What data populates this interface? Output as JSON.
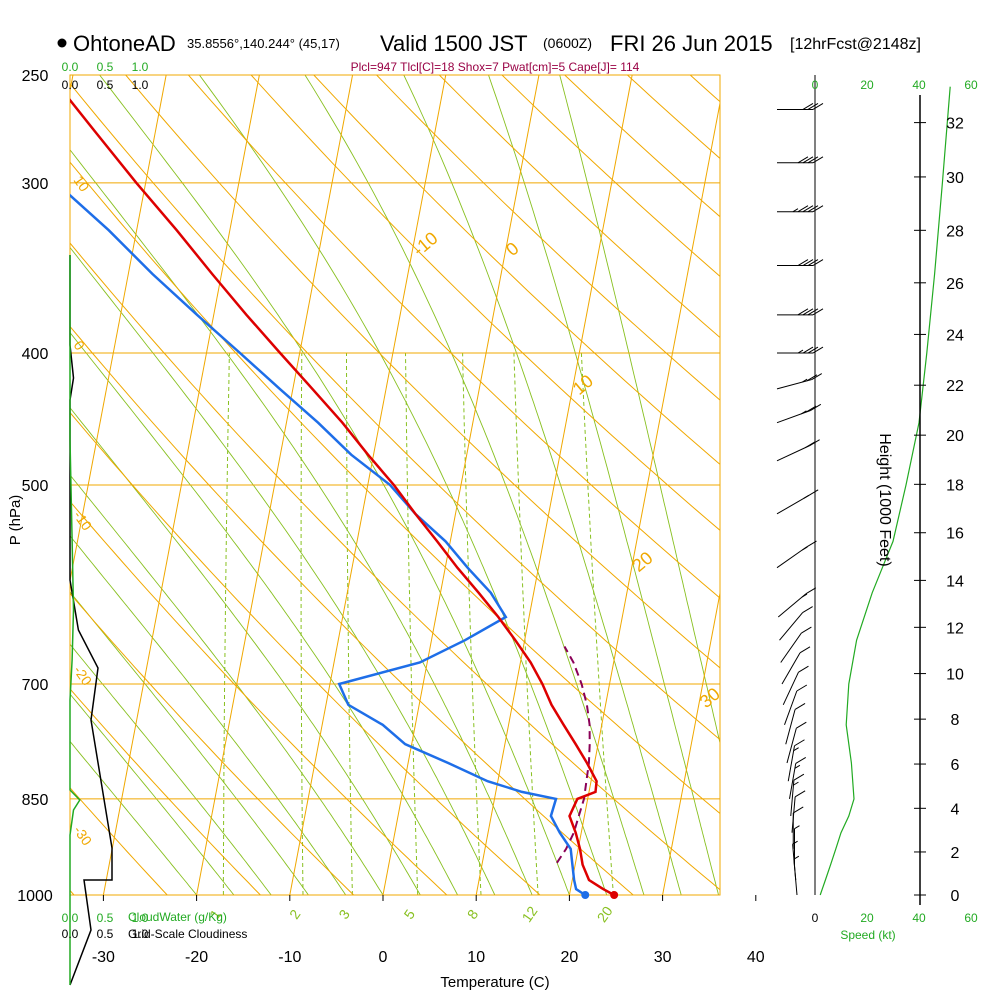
{
  "header": {
    "station": "OhtoneAD",
    "coords": "35.8556°,140.244° (45,17)",
    "valid_main": "Valid 1500 JST",
    "valid_utc": "(0600Z)",
    "valid_date": "FRI 26 Jun 2015",
    "forecast": "[12hrFcst@2148z]",
    "indices": "Plcl=947 Tlcl[C]=18 Shox=7 Pwat[cm]=5 Cape[J]= 114"
  },
  "colors": {
    "temperature": "#dd0000",
    "dewpoint": "#1e6ee8",
    "parcel": "#8b0057",
    "isotherm": "#f0a800",
    "mixing": "#88c020",
    "green_text": "#22aa22",
    "indices_text": "#990044"
  },
  "chart_data": {
    "type": "skewt",
    "title": "OhtoneAD Valid 1500 JST (0600Z) FRI 26 Jun 2015",
    "xlabel": "Temperature (C)",
    "ylabel": "P (hPa)",
    "right_ylabel": "Height (1000 Feet)",
    "xlim": [
      -35,
      36
    ],
    "pressure_range": [
      250,
      1000
    ],
    "x_ticks": [
      -30,
      -20,
      -10,
      0,
      10,
      20,
      30,
      40
    ],
    "x_tick_labels": [
      "-30",
      "-20",
      "-10",
      "0",
      "10",
      "20",
      "30",
      "40"
    ],
    "pressure_levels": [
      250,
      300,
      400,
      500,
      700,
      850,
      1000
    ],
    "pressure_labels": [
      "250",
      "300",
      "400",
      "500",
      "700",
      "850",
      "1000"
    ],
    "isotherm_labels": [
      {
        "value": -10,
        "text": "-10"
      },
      {
        "value": 0,
        "text": "0"
      },
      {
        "value": 10,
        "text": "10"
      },
      {
        "value": 20,
        "text": "20"
      },
      {
        "value": 30,
        "text": "30"
      }
    ],
    "dry_adiabat_labels": [
      {
        "value": 10,
        "text": "10"
      },
      {
        "value": 0,
        "text": "0"
      },
      {
        "value": -10,
        "text": "-10"
      },
      {
        "value": -20,
        "text": "-20"
      },
      {
        "value": -30,
        "text": "-30"
      }
    ],
    "mixing_ratio_labels": [
      "1",
      "2",
      "3",
      "5",
      "8",
      "12",
      "20"
    ],
    "mixing_ratios": [
      1,
      2,
      3,
      5,
      8,
      12,
      20
    ],
    "temperature": {
      "name": "Temperature",
      "p": [
        1000,
        990,
        975,
        950,
        925,
        900,
        875,
        850,
        840,
        825,
        800,
        775,
        750,
        725,
        700,
        675,
        650,
        625,
        600,
        575,
        550,
        525,
        500,
        475,
        450,
        425,
        400,
        375,
        350,
        325,
        300,
        275,
        260
      ],
      "t": [
        24.8,
        23.5,
        21.8,
        20.8,
        20.2,
        19.4,
        18.4,
        18.9,
        20.7,
        20.6,
        19.2,
        17.6,
        15.9,
        14.2,
        12.8,
        11.1,
        9.0,
        6.7,
        4.1,
        1.3,
        -1.4,
        -4.3,
        -7.2,
        -10.6,
        -14.0,
        -17.9,
        -22.1,
        -26.5,
        -31.0,
        -35.7,
        -41.0,
        -46.5,
        -50.0
      ]
    },
    "dewpoint": {
      "name": "Dewpoint",
      "p": [
        1000,
        990,
        975,
        950,
        925,
        900,
        875,
        850,
        840,
        825,
        800,
        775,
        750,
        725,
        700,
        675,
        650,
        625,
        600,
        575,
        550,
        525,
        500,
        475,
        450,
        425,
        400,
        375,
        350,
        325,
        300,
        275,
        260
      ],
      "t": [
        21.7,
        20.6,
        20.2,
        19.7,
        19.2,
        17.7,
        16.4,
        16.6,
        12.8,
        8.9,
        4.3,
        -0.7,
        -3.5,
        -7.6,
        -9.0,
        -0.8,
        3.6,
        7.5,
        5.4,
        2.4,
        -0.5,
        -4.3,
        -7.6,
        -12.4,
        -16.6,
        -21.4,
        -26.4,
        -31.8,
        -37.4,
        -43.0,
        -49.6,
        -55.5,
        -60.5
      ]
    },
    "parcel": {
      "name": "Parcel path",
      "p": [
        947,
        925,
        900,
        875,
        850,
        825,
        800,
        775,
        750,
        725,
        700,
        675,
        657
      ],
      "t": [
        18.0,
        18.7,
        19.2,
        19.4,
        19.6,
        19.5,
        19.4,
        19.1,
        18.7,
        18.0,
        17.0,
        15.7,
        14.4
      ]
    },
    "surface_markers": [
      {
        "name": "surface temperature",
        "p": 1000,
        "t": 24.8
      },
      {
        "name": "surface dewpoint",
        "p": 1000,
        "t": 21.7
      }
    ],
    "height_ticks_kft": [
      0,
      2,
      4,
      6,
      8,
      10,
      12,
      14,
      16,
      18,
      20,
      22,
      24,
      26,
      28,
      30,
      32
    ],
    "height_tick_labels": [
      "0",
      "2",
      "4",
      "6",
      "8",
      "10",
      "12",
      "14",
      "16",
      "18",
      "20",
      "22",
      "24",
      "26",
      "28",
      "30",
      "32"
    ],
    "cloudiness_scale": {
      "ticks": [
        "0.0",
        "0.5",
        "1.0"
      ],
      "bottom_label": "Grid-Scale Cloudiness",
      "points": [
        [
          0,
          255
        ],
        [
          0,
          345
        ],
        [
          0.05,
          378
        ],
        [
          0,
          400
        ],
        [
          0,
          452
        ],
        [
          0,
          580
        ],
        [
          0.12,
          630
        ],
        [
          0.4,
          668
        ],
        [
          0.3,
          720
        ],
        [
          0.6,
          848
        ],
        [
          0.6,
          880
        ],
        [
          0.2,
          880
        ],
        [
          0.3,
          930
        ],
        [
          0,
          985
        ]
      ]
    },
    "cloudwater_scale": {
      "ticks": [
        "0.0",
        "0.5",
        "1.0"
      ],
      "bottom_label": "CloudWater (g/Kg)",
      "points": [
        [
          0,
          255
        ],
        [
          0,
          440
        ],
        [
          0.03,
          540
        ],
        [
          0.05,
          610
        ],
        [
          0.03,
          660
        ],
        [
          0,
          700
        ],
        [
          0,
          790
        ],
        [
          0.14,
          800
        ],
        [
          0.05,
          810
        ],
        [
          0,
          835
        ],
        [
          0,
          985
        ]
      ]
    },
    "wind_speed_scale": {
      "ticks": [
        "0",
        "20",
        "40",
        "60"
      ],
      "bottom_label": "Speed (kt)",
      "bottom_tick_labels": [
        "0",
        "20",
        "40",
        "60"
      ],
      "points_kt": [
        [
          2,
          1000
        ],
        [
          4,
          975
        ],
        [
          6,
          950
        ],
        [
          8,
          925
        ],
        [
          10,
          900
        ],
        [
          13,
          875
        ],
        [
          15,
          850
        ],
        [
          14,
          800
        ],
        [
          12,
          750
        ],
        [
          13,
          700
        ],
        [
          16,
          650
        ],
        [
          22,
          600
        ],
        [
          30,
          550
        ],
        [
          35,
          500
        ],
        [
          40,
          450
        ],
        [
          43,
          400
        ],
        [
          46,
          350
        ],
        [
          49,
          300
        ],
        [
          52,
          255
        ]
      ]
    },
    "wind_profile_kt": [
      {
        "p": 265,
        "speed": 30,
        "dir": 270
      },
      {
        "p": 290,
        "speed": 40,
        "dir": 270
      },
      {
        "p": 315,
        "speed": 45,
        "dir": 270
      },
      {
        "p": 345,
        "speed": 40,
        "dir": 270
      },
      {
        "p": 375,
        "speed": 40,
        "dir": 270
      },
      {
        "p": 400,
        "speed": 35,
        "dir": 270
      },
      {
        "p": 425,
        "speed": 25,
        "dir": 255
      },
      {
        "p": 450,
        "speed": 25,
        "dir": 250
      },
      {
        "p": 480,
        "speed": 20,
        "dir": 245
      },
      {
        "p": 525,
        "speed": 15,
        "dir": 240
      },
      {
        "p": 575,
        "speed": 15,
        "dir": 235
      },
      {
        "p": 625,
        "speed": 15,
        "dir": 230
      },
      {
        "p": 650,
        "speed": 10,
        "dir": 220
      },
      {
        "p": 675,
        "speed": 10,
        "dir": 215
      },
      {
        "p": 700,
        "speed": 10,
        "dir": 210
      },
      {
        "p": 725,
        "speed": 10,
        "dir": 205
      },
      {
        "p": 750,
        "speed": 10,
        "dir": 200
      },
      {
        "p": 775,
        "speed": 10,
        "dir": 195
      },
      {
        "p": 800,
        "speed": 10,
        "dir": 195
      },
      {
        "p": 825,
        "speed": 15,
        "dir": 190
      },
      {
        "p": 850,
        "speed": 15,
        "dir": 190
      },
      {
        "p": 875,
        "speed": 15,
        "dir": 185
      },
      {
        "p": 900,
        "speed": 10,
        "dir": 185
      },
      {
        "p": 925,
        "speed": 10,
        "dir": 180
      },
      {
        "p": 950,
        "speed": 5,
        "dir": 180
      },
      {
        "p": 975,
        "speed": 5,
        "dir": 175
      },
      {
        "p": 1000,
        "speed": 5,
        "dir": 175
      }
    ]
  }
}
